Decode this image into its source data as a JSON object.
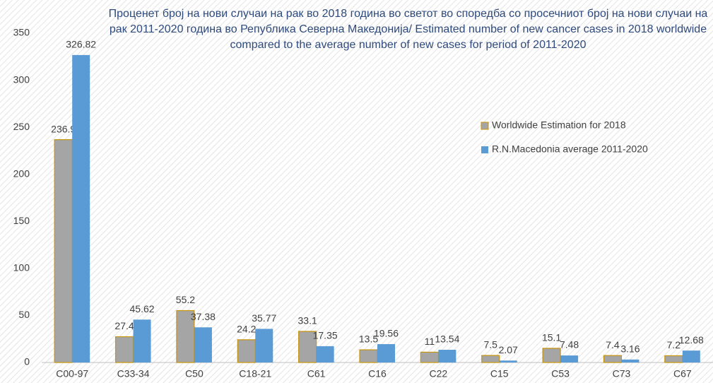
{
  "chart_data": {
    "type": "bar",
    "title": "Проценет број на нови случаи на рак во 2018 година во светот во споредба со просечниот број на нови случаи на рак 2011-2020 година во Република Северна Македонија/ Estimated number of new cancer cases in 2018 worldwide  compared to the average number of new cases for period of 2011-2020",
    "categories": [
      "C00-97",
      "C33-34",
      "C50",
      "C18-21",
      "C61",
      "C16",
      "C22",
      "C15",
      "C53",
      "C73",
      "C67"
    ],
    "series": [
      {
        "name": "Worldwide Estimation for 2018",
        "color": "#a5a5a5",
        "edge": "#c9950c",
        "values": [
          236.9,
          27.4,
          55.2,
          24.2,
          33.1,
          13.5,
          11,
          7.5,
          15.1,
          7.4,
          7.2
        ]
      },
      {
        "name": "R.N.Macedonia average 2011-2020",
        "color": "#5b9bd5",
        "values": [
          326.82,
          45.62,
          37.38,
          35.77,
          17.35,
          19.56,
          13.54,
          2.07,
          7.48,
          3.16,
          12.68
        ]
      }
    ],
    "ylim": [
      0,
      350
    ],
    "yticks": [
      0,
      50,
      100,
      150,
      200,
      250,
      300,
      350
    ],
    "grid": false,
    "legend": "right"
  }
}
